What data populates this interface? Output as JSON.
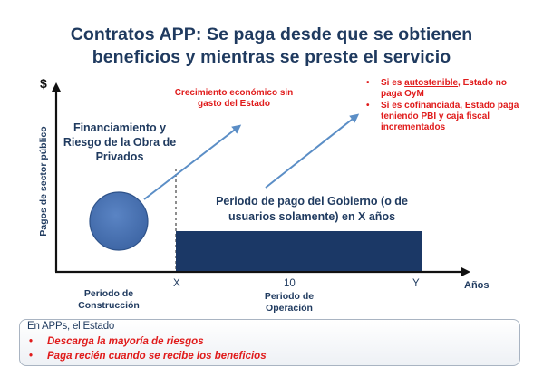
{
  "title": {
    "line1": "Contratos APP:  Se paga desde que se obtienen",
    "line2": "beneficios y mientras se preste el servicio"
  },
  "axis": {
    "y_symbol": "$",
    "y_label": "Pagos de sector público",
    "x_label": "Años",
    "ticks": {
      "x": "X",
      "ten": "10",
      "y": "Y"
    }
  },
  "labels": {
    "financing": "Financiamiento y Riesgo de la Obra de Privados",
    "growth": "Crecimiento económico sin gasto del Estado",
    "payment_period": "Periodo de pago del Gobierno (o de usuarios solamente) en X años",
    "construction_period": "Periodo de Construcción",
    "operation_period": "Periodo de Operación"
  },
  "conditions": [
    {
      "prefix": "Si es ",
      "emph": "autostenible",
      "suffix": ", Estado no paga OyM"
    },
    {
      "prefix": "",
      "emph": "",
      "suffix": "Si es cofinanciada, Estado paga teniendo PBI y caja fiscal incrementados"
    }
  ],
  "summary": {
    "heading": "En APPs, el Estado",
    "items": [
      "Descarga  la mayoría de riesgos",
      "Paga  recién cuando se recibe los beneficios"
    ]
  },
  "colors": {
    "navy": "#1f3a5f",
    "red": "#e01b1b",
    "circle": "#4a73b2",
    "bar": "#1b3866",
    "arrow": "#5b8ec6"
  }
}
